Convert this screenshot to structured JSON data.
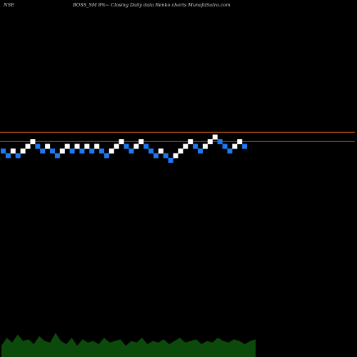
{
  "header": {
    "exchange": "NSE",
    "title": "BOSS_SM 8%~  Closing Daily data  Renko  charts MunafaSutra.com"
  },
  "colors": {
    "background": "#000000",
    "up_brick": "#ffffff",
    "down_brick": "#1e78f0",
    "reference_line": "#c85a14",
    "volume_area": "#0b4a0b"
  },
  "chart_data": {
    "type": "renko",
    "brick_size_pct": 8,
    "bricks": [
      {
        "dir": "down",
        "level": 0
      },
      {
        "dir": "down",
        "level": -1
      },
      {
        "dir": "up",
        "level": 0
      },
      {
        "dir": "down",
        "level": -1
      },
      {
        "dir": "up",
        "level": 0
      },
      {
        "dir": "up",
        "level": 1
      },
      {
        "dir": "up",
        "level": 2
      },
      {
        "dir": "down",
        "level": 1
      },
      {
        "dir": "down",
        "level": 0
      },
      {
        "dir": "up",
        "level": 1
      },
      {
        "dir": "down",
        "level": 0
      },
      {
        "dir": "down",
        "level": -1
      },
      {
        "dir": "up",
        "level": 0
      },
      {
        "dir": "up",
        "level": 1
      },
      {
        "dir": "down",
        "level": 0
      },
      {
        "dir": "up",
        "level": 1
      },
      {
        "dir": "down",
        "level": 0
      },
      {
        "dir": "up",
        "level": 1
      },
      {
        "dir": "down",
        "level": 0
      },
      {
        "dir": "up",
        "level": 1
      },
      {
        "dir": "down",
        "level": 0
      },
      {
        "dir": "down",
        "level": -1
      },
      {
        "dir": "up",
        "level": 0
      },
      {
        "dir": "up",
        "level": 1
      },
      {
        "dir": "up",
        "level": 2
      },
      {
        "dir": "down",
        "level": 1
      },
      {
        "dir": "down",
        "level": 0
      },
      {
        "dir": "up",
        "level": 1
      },
      {
        "dir": "up",
        "level": 2
      },
      {
        "dir": "down",
        "level": 1
      },
      {
        "dir": "down",
        "level": 0
      },
      {
        "dir": "down",
        "level": -1
      },
      {
        "dir": "up",
        "level": 0
      },
      {
        "dir": "down",
        "level": -1
      },
      {
        "dir": "down",
        "level": -2
      },
      {
        "dir": "up",
        "level": -1
      },
      {
        "dir": "up",
        "level": 0
      },
      {
        "dir": "up",
        "level": 1
      },
      {
        "dir": "up",
        "level": 2
      },
      {
        "dir": "down",
        "level": 1
      },
      {
        "dir": "down",
        "level": 0
      },
      {
        "dir": "up",
        "level": 1
      },
      {
        "dir": "up",
        "level": 2
      },
      {
        "dir": "up",
        "level": 3
      },
      {
        "dir": "down",
        "level": 2
      },
      {
        "dir": "down",
        "level": 1
      },
      {
        "dir": "down",
        "level": 0
      },
      {
        "dir": "up",
        "level": 1
      },
      {
        "dir": "up",
        "level": 2
      },
      {
        "dir": "down",
        "level": 1
      }
    ],
    "reference_lines": [
      {
        "name": "upper",
        "level": 3.5
      },
      {
        "name": "lower",
        "level": 1.5
      }
    ],
    "volume_profile": [
      0.35,
      0.6,
      0.45,
      0.7,
      0.5,
      0.55,
      0.4,
      0.65,
      0.5,
      0.45,
      0.75,
      0.5,
      0.4,
      0.6,
      0.35,
      0.55,
      0.45,
      0.5,
      0.4,
      0.6,
      0.45,
      0.5,
      0.55,
      0.35,
      0.5,
      0.45,
      0.6,
      0.4,
      0.5,
      0.45,
      0.55,
      0.4,
      0.5,
      0.6,
      0.45,
      0.5,
      0.55,
      0.4,
      0.5,
      0.45,
      0.6,
      0.5,
      0.45,
      0.55,
      0.5,
      0.4,
      0.5,
      0.55
    ]
  }
}
